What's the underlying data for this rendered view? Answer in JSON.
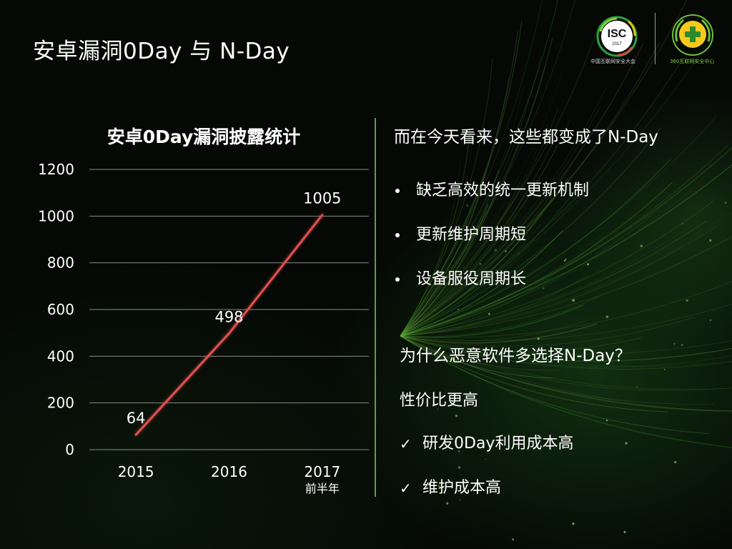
{
  "slide": {
    "title": "安卓漏洞0Day 与 N-Day"
  },
  "logos": {
    "isc": {
      "text": "ISC",
      "year": "2017",
      "caption": "中国互联网安全大会",
      "accent": "#2aa33c"
    },
    "org": {
      "caption": "360互联网安全中心",
      "accent": "#7fd14a",
      "cross_color": "#f6c91c"
    }
  },
  "chart_data": {
    "type": "line",
    "title": "安卓0Day漏洞披露统计",
    "categories": [
      "2015",
      "2016",
      "2017"
    ],
    "category_sublabels": [
      "",
      "",
      "前半年"
    ],
    "values": [
      64,
      498,
      1005
    ],
    "data_labels": [
      "64",
      "498",
      "1005"
    ],
    "y_ticks": [
      "0",
      "200",
      "400",
      "600",
      "800",
      "1000",
      "1200"
    ],
    "ylim": [
      0,
      1200
    ],
    "grid": true,
    "line_color": "#e05050"
  },
  "right_panel": {
    "heading": "而在今天看来，这些都变成了N-Day",
    "bullets": [
      "缺乏高效的统一更新机制",
      "更新维护周期短",
      "设备服役周期长"
    ],
    "question": "为什么恶意软件多选择N-Day？",
    "sub_heading": "性价比更高",
    "check_items": [
      "研发0Day利用成本高",
      "维护成本高"
    ]
  }
}
